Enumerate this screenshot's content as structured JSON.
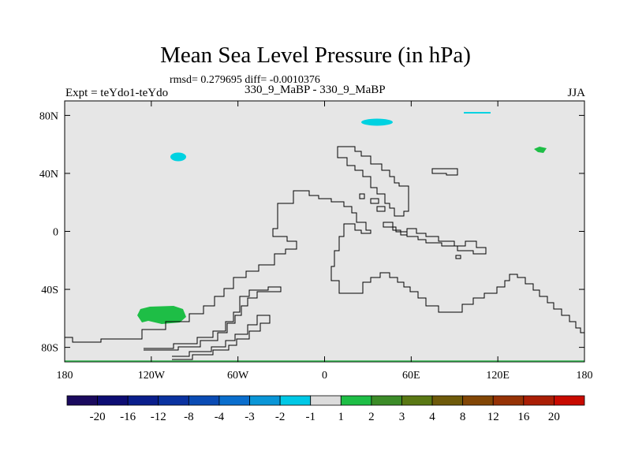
{
  "chart_data": {
    "type": "map",
    "title": "Mean Sea Level Pressure (in hPa)",
    "stats_line": "rmsd= 0.279695 diff= -0.0010376",
    "left_label": "Expt = teYdo1-teYdo",
    "center_label": "330_9_MaBP - 330_9_MaBP",
    "right_label": "JJA",
    "lon_range": [
      -180,
      180
    ],
    "lat_range": [
      -90,
      90
    ],
    "x_ticks": [
      {
        "value": -180,
        "label": "180"
      },
      {
        "value": -120,
        "label": "120W"
      },
      {
        "value": -60,
        "label": "60W"
      },
      {
        "value": 0,
        "label": "0"
      },
      {
        "value": 60,
        "label": "60E"
      },
      {
        "value": 120,
        "label": "120E"
      },
      {
        "value": 180,
        "label": "180"
      }
    ],
    "y_ticks": [
      {
        "value": 80,
        "label": "80N"
      },
      {
        "value": 40,
        "label": "40N"
      },
      {
        "value": 0,
        "label": "0"
      },
      {
        "value": -40,
        "label": "40S"
      },
      {
        "value": -80,
        "label": "80S"
      }
    ],
    "colorbar": {
      "colors": [
        "#1a0a5e",
        "#0d0d73",
        "#0a1e8c",
        "#0a32a0",
        "#0a4bb4",
        "#0a6ecd",
        "#0a96d7",
        "#00c8e6",
        "#dcdcdc",
        "#1ebe46",
        "#3c8c28",
        "#5a7814",
        "#6e5a0a",
        "#824605",
        "#963205",
        "#aa1e05",
        "#c80a00"
      ],
      "labels": [
        "-20",
        "-16",
        "-12",
        "-8",
        "-4",
        "-3",
        "-2",
        "-1",
        "1",
        "2",
        "3",
        "4",
        "8",
        "12",
        "16",
        "20"
      ]
    },
    "anomaly_regions": [
      {
        "name": "north-atlantic-low-anomaly",
        "color": "#00c8e6",
        "range": "-2 to -1"
      },
      {
        "name": "arctic-low-anomaly",
        "color": "#00c8e6",
        "range": "-2 to -1"
      },
      {
        "name": "far-north-low-anomaly",
        "color": "#00c8e6",
        "range": "-2 to -1"
      },
      {
        "name": "south-pacific-high-anomaly",
        "color": "#1ebe46",
        "range": "1 to 2"
      },
      {
        "name": "north-pacific-high-anomaly",
        "color": "#1ebe46",
        "range": "1 to 2"
      }
    ]
  }
}
